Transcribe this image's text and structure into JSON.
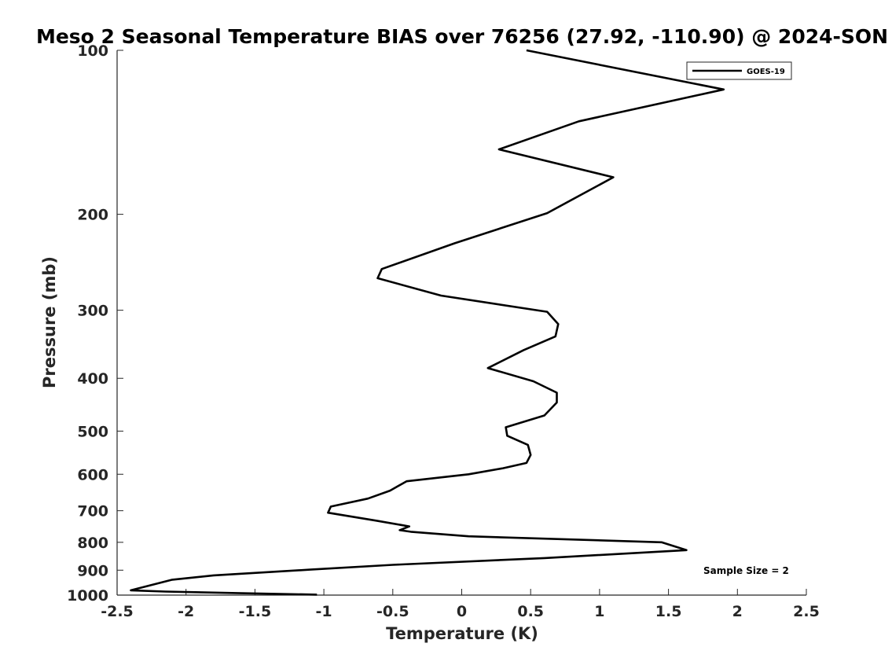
{
  "chart_data": {
    "type": "line",
    "title": "Meso 2 Seasonal Temperature BIAS over 76256 (27.92, -110.90) @ 2024-SON",
    "xlabel": "Temperature (K)",
    "ylabel": "Pressure (mb)",
    "xlim": [
      -2.5,
      2.5
    ],
    "ylim": [
      100,
      1000
    ],
    "yscale": "log",
    "y_reversed": true,
    "x_ticks": [
      -2.5,
      -2,
      -1.5,
      -1,
      -0.5,
      0,
      0.5,
      1,
      1.5,
      2,
      2.5
    ],
    "x_tick_labels": [
      "-2.5",
      "-2",
      "-1.5",
      "-1",
      "-0.5",
      "0",
      "0.5",
      "1",
      "1.5",
      "2",
      "2.5"
    ],
    "y_ticks": [
      100,
      200,
      300,
      400,
      500,
      600,
      700,
      800,
      900,
      1000
    ],
    "y_tick_labels": [
      "100",
      "200",
      "300",
      "400",
      "500",
      "600",
      "700",
      "800",
      "900",
      "1000"
    ],
    "grid": false,
    "legend_position": "top-right",
    "annotation": "Sample Size = 2",
    "series": [
      {
        "name": "GOES-19",
        "color": "#000000",
        "points": [
          {
            "x": 0.47,
            "y": 100
          },
          {
            "x": 1.9,
            "y": 118
          },
          {
            "x": 0.85,
            "y": 135
          },
          {
            "x": 0.27,
            "y": 152
          },
          {
            "x": 1.1,
            "y": 171
          },
          {
            "x": 0.62,
            "y": 199
          },
          {
            "x": -0.05,
            "y": 226
          },
          {
            "x": -0.58,
            "y": 252
          },
          {
            "x": -0.61,
            "y": 262
          },
          {
            "x": -0.15,
            "y": 282
          },
          {
            "x": 0.62,
            "y": 302
          },
          {
            "x": 0.7,
            "y": 318
          },
          {
            "x": 0.68,
            "y": 335
          },
          {
            "x": 0.45,
            "y": 355
          },
          {
            "x": 0.19,
            "y": 383
          },
          {
            "x": 0.52,
            "y": 405
          },
          {
            "x": 0.69,
            "y": 425
          },
          {
            "x": 0.69,
            "y": 443
          },
          {
            "x": 0.6,
            "y": 468
          },
          {
            "x": 0.32,
            "y": 492
          },
          {
            "x": 0.33,
            "y": 510
          },
          {
            "x": 0.48,
            "y": 530
          },
          {
            "x": 0.5,
            "y": 553
          },
          {
            "x": 0.47,
            "y": 572
          },
          {
            "x": 0.3,
            "y": 585
          },
          {
            "x": 0.05,
            "y": 600
          },
          {
            "x": -0.4,
            "y": 618
          },
          {
            "x": -0.52,
            "y": 643
          },
          {
            "x": -0.68,
            "y": 665
          },
          {
            "x": -0.95,
            "y": 688
          },
          {
            "x": -0.97,
            "y": 706
          },
          {
            "x": -0.62,
            "y": 730
          },
          {
            "x": -0.38,
            "y": 748
          },
          {
            "x": -0.45,
            "y": 760
          },
          {
            "x": -0.37,
            "y": 765
          },
          {
            "x": 0.05,
            "y": 780
          },
          {
            "x": 1.45,
            "y": 800
          },
          {
            "x": 1.63,
            "y": 827
          },
          {
            "x": 0.6,
            "y": 855
          },
          {
            "x": -0.5,
            "y": 880
          },
          {
            "x": -1.1,
            "y": 898
          },
          {
            "x": -1.8,
            "y": 920
          },
          {
            "x": -2.1,
            "y": 937
          },
          {
            "x": -2.4,
            "y": 980
          },
          {
            "x": -2.15,
            "y": 985
          },
          {
            "x": -1.6,
            "y": 992
          },
          {
            "x": -1.05,
            "y": 998
          }
        ]
      }
    ]
  }
}
